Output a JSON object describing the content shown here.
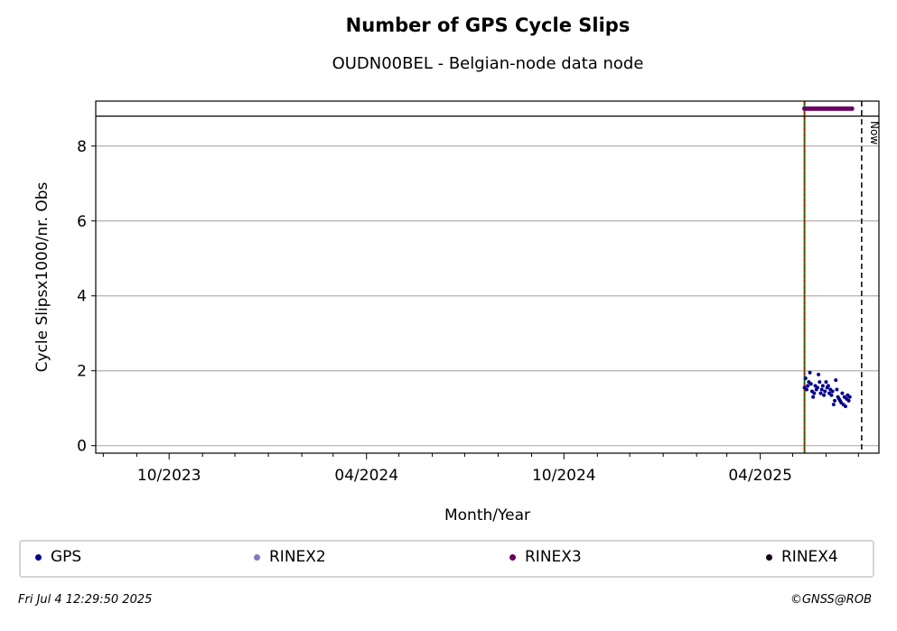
{
  "title": "Number of GPS Cycle Slips",
  "subtitle": "OUDN00BEL - Belgian-node data node",
  "footer": {
    "timestamp": "Fri Jul  4 12:29:50 2025",
    "copyright": "©GNSS@ROB"
  },
  "colors": {
    "gps": "#00008b",
    "rinex2": "#7b7bbf",
    "rinex3": "#6a005f",
    "rinex4": "#1a0020",
    "start_line_green": "#008000",
    "start_line_red": "#cc0000",
    "grid": "#b0b0b0"
  },
  "chart_data": {
    "type": "scatter",
    "title": "Number of GPS Cycle Slips",
    "subtitle": "OUDN00BEL - Belgian-node data node",
    "xlabel": "Month/Year",
    "ylabel": "Cycle Slipsx1000/nr. Obs",
    "x_ticks": [
      "10/2023",
      "04/2024",
      "10/2024",
      "04/2025"
    ],
    "xlim": [
      "2023-07-25",
      "2025-07-20"
    ],
    "ylim": [
      -0.2,
      9.2
    ],
    "y_ticks": [
      0,
      2,
      4,
      6,
      8
    ],
    "grid": "horizontal",
    "now_date": "2025-07-04",
    "now_label": "Now",
    "start_date": "2025-05-12",
    "rinex3_level": 9.0,
    "upper_line": 8.8,
    "legend_position": "bottom",
    "legend": [
      "GPS",
      "RINEX2",
      "RINEX3",
      "RINEX4"
    ],
    "series": [
      {
        "name": "GPS",
        "x": [
          "2025-05-12",
          "2025-05-13",
          "2025-05-14",
          "2025-05-15",
          "2025-05-16",
          "2025-05-17",
          "2025-05-18",
          "2025-05-19",
          "2025-05-20",
          "2025-05-21",
          "2025-05-22",
          "2025-05-23",
          "2025-05-24",
          "2025-05-25",
          "2025-05-26",
          "2025-05-27",
          "2025-05-28",
          "2025-05-29",
          "2025-05-30",
          "2025-05-31",
          "2025-06-01",
          "2025-06-02",
          "2025-06-03",
          "2025-06-04",
          "2025-06-05",
          "2025-06-06",
          "2025-06-07",
          "2025-06-08",
          "2025-06-09",
          "2025-06-10",
          "2025-06-11",
          "2025-06-12",
          "2025-06-13",
          "2025-06-14",
          "2025-06-15",
          "2025-06-16",
          "2025-06-17",
          "2025-06-18",
          "2025-06-19",
          "2025-06-20",
          "2025-06-21",
          "2025-06-22",
          "2025-06-23"
        ],
        "values": [
          1.55,
          1.8,
          1.5,
          1.6,
          1.7,
          1.95,
          1.65,
          1.45,
          1.3,
          1.4,
          1.6,
          1.5,
          1.55,
          1.9,
          1.7,
          1.4,
          1.5,
          1.6,
          1.35,
          1.45,
          1.7,
          1.55,
          1.6,
          1.4,
          1.5,
          1.35,
          1.45,
          1.1,
          1.2,
          1.75,
          1.5,
          1.3,
          1.25,
          1.2,
          1.15,
          1.4,
          1.1,
          1.3,
          1.05,
          1.25,
          1.35,
          1.2,
          1.3
        ]
      },
      {
        "name": "RINEX3",
        "x": [
          "2025-05-12",
          "2025-05-14",
          "2025-05-16",
          "2025-05-18",
          "2025-05-20",
          "2025-05-22",
          "2025-05-24",
          "2025-05-26",
          "2025-05-28",
          "2025-05-30",
          "2025-06-01",
          "2025-06-03",
          "2025-06-05",
          "2025-06-07",
          "2025-06-09",
          "2025-06-11",
          "2025-06-13",
          "2025-06-15",
          "2025-06-17",
          "2025-06-19",
          "2025-06-21",
          "2025-06-23",
          "2025-06-25"
        ],
        "values": [
          9,
          9,
          9,
          9,
          9,
          9,
          9,
          9,
          9,
          9,
          9,
          9,
          9,
          9,
          9,
          9,
          9,
          9,
          9,
          9,
          9,
          9,
          9
        ]
      },
      {
        "name": "RINEX2",
        "x": [],
        "values": []
      },
      {
        "name": "RINEX4",
        "x": [],
        "values": []
      }
    ]
  }
}
